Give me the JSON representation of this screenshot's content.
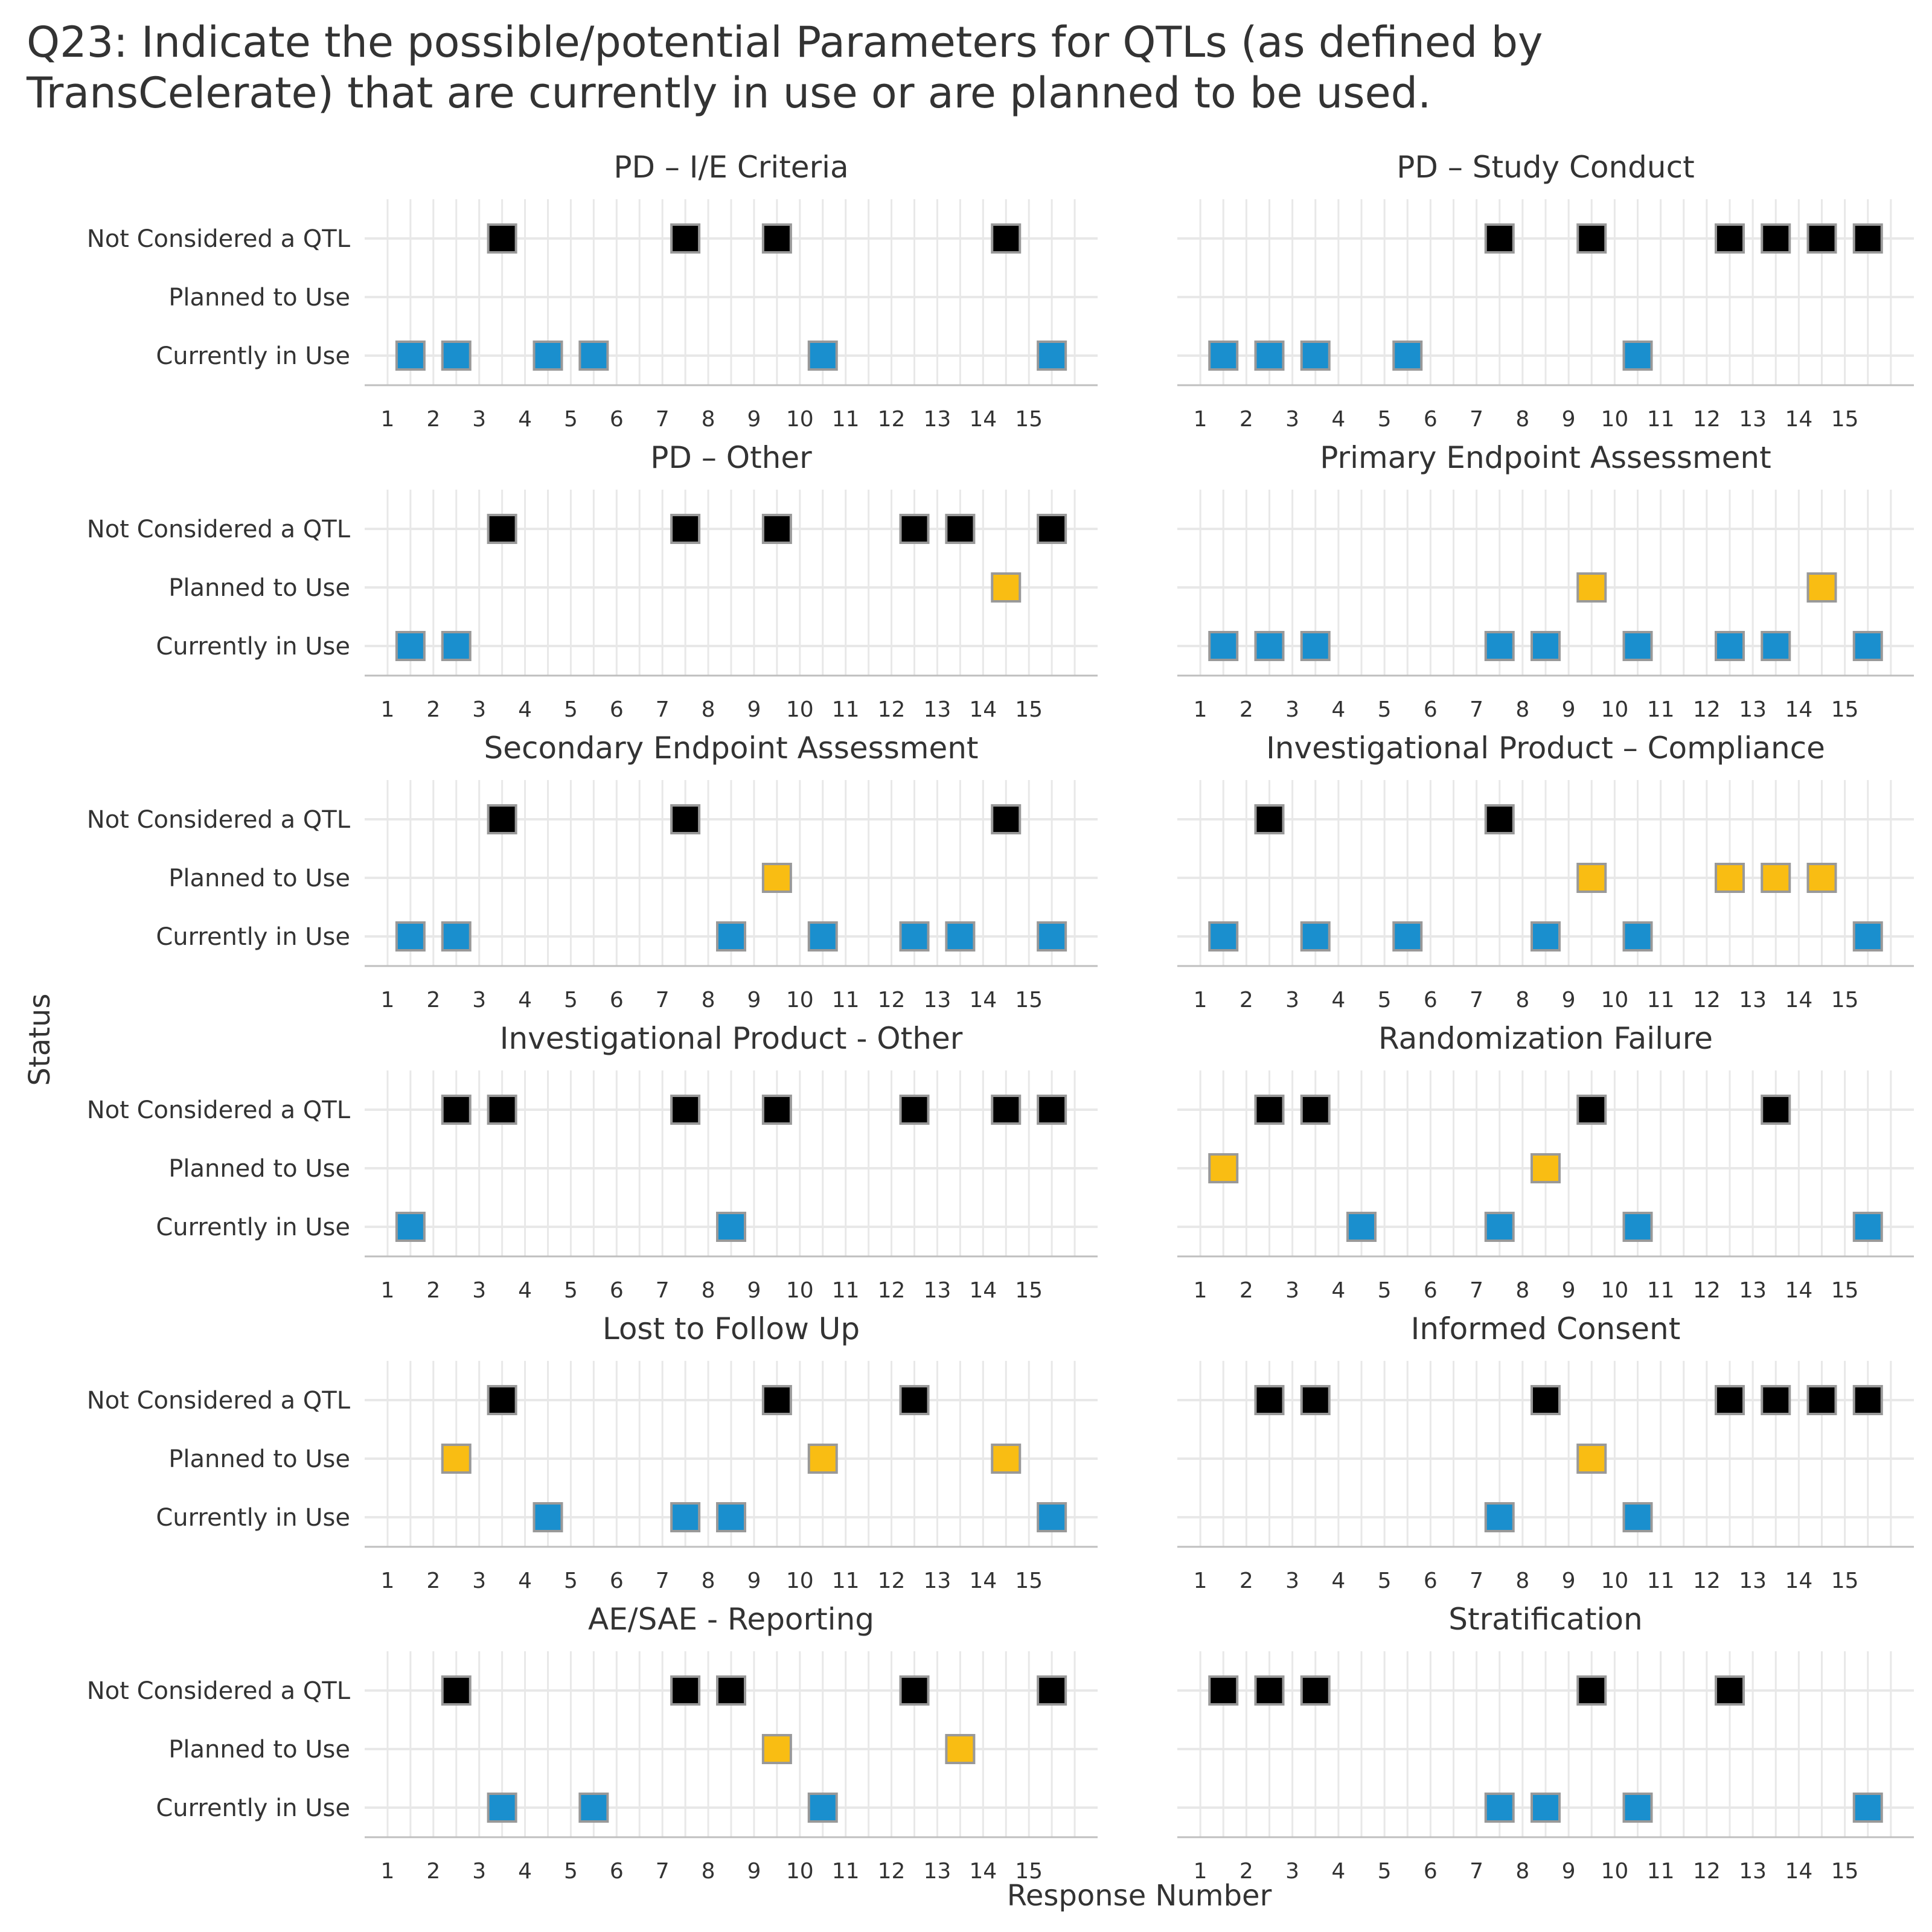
{
  "title_lines": [
    "Q23: Indicate the possible/potential Parameters for QTLs (as defined by",
    "TransCelerate) that are currently in use or are planned to be used."
  ],
  "chart_data": {
    "type": "scatter",
    "xlabel": "Response Number",
    "ylabel": "Status",
    "x_ticks": [
      1,
      2,
      3,
      4,
      5,
      6,
      7,
      8,
      9,
      10,
      11,
      12,
      13,
      14,
      15
    ],
    "xlim": [
      0.5,
      16.5
    ],
    "status_categories": [
      "Not Considered a QTL",
      "Planned to Use",
      "Currently in Use"
    ],
    "colors": {
      "Not Considered a QTL": "#000000",
      "Planned to Use": "#F9BD13",
      "Currently in Use": "#1A8FCE",
      "marker_border": "#999999",
      "grid": "#E8E8E8",
      "axis": "#BFBFBF"
    },
    "marker": "square",
    "grid": true,
    "facets": [
      {
        "name": "PD – I/E Criteria",
        "points": {
          "Not Considered a QTL": [
            3,
            7,
            9,
            14
          ],
          "Planned to Use": [],
          "Currently in Use": [
            1,
            2,
            4,
            5,
            10,
            15
          ]
        }
      },
      {
        "name": "PD – Study Conduct",
        "points": {
          "Not Considered a QTL": [
            7,
            9,
            12,
            13,
            14,
            15
          ],
          "Planned to Use": [],
          "Currently in Use": [
            1,
            2,
            3,
            5,
            10
          ]
        }
      },
      {
        "name": "PD – Other",
        "points": {
          "Not Considered a QTL": [
            3,
            7,
            9,
            12,
            13,
            15
          ],
          "Planned to Use": [
            14
          ],
          "Currently in Use": [
            1,
            2
          ]
        }
      },
      {
        "name": "Primary Endpoint Assessment",
        "points": {
          "Not Considered a QTL": [],
          "Planned to Use": [
            9,
            14
          ],
          "Currently in Use": [
            1,
            2,
            3,
            7,
            8,
            10,
            12,
            13,
            15
          ]
        }
      },
      {
        "name": "Secondary Endpoint Assessment",
        "points": {
          "Not Considered a QTL": [
            3,
            7,
            14
          ],
          "Planned to Use": [
            9
          ],
          "Currently in Use": [
            1,
            2,
            8,
            10,
            12,
            13,
            15
          ]
        }
      },
      {
        "name": "Investigational Product – Compliance",
        "points": {
          "Not Considered a QTL": [
            2,
            7
          ],
          "Planned to Use": [
            9,
            12,
            13,
            14
          ],
          "Currently in Use": [
            1,
            3,
            5,
            8,
            10,
            15
          ]
        }
      },
      {
        "name": "Investigational Product - Other",
        "points": {
          "Not Considered a QTL": [
            2,
            3,
            7,
            9,
            12,
            14,
            15
          ],
          "Planned to Use": [],
          "Currently in Use": [
            1,
            8
          ]
        }
      },
      {
        "name": "Randomization Failure",
        "points": {
          "Not Considered a QTL": [
            2,
            3,
            9,
            13
          ],
          "Planned to Use": [
            1,
            8
          ],
          "Currently in Use": [
            4,
            7,
            10,
            15
          ]
        }
      },
      {
        "name": "Lost to Follow Up",
        "points": {
          "Not Considered a QTL": [
            3,
            9,
            12
          ],
          "Planned to Use": [
            2,
            10,
            14
          ],
          "Currently in Use": [
            4,
            7,
            8,
            15
          ]
        }
      },
      {
        "name": "Informed Consent",
        "points": {
          "Not Considered a QTL": [
            2,
            3,
            8,
            12,
            13,
            14,
            15
          ],
          "Planned to Use": [
            9
          ],
          "Currently in Use": [
            7,
            10
          ]
        }
      },
      {
        "name": "AE/SAE - Reporting",
        "points": {
          "Not Considered a QTL": [
            2,
            7,
            8,
            12,
            15
          ],
          "Planned to Use": [
            9,
            13
          ],
          "Currently in Use": [
            3,
            5,
            10
          ]
        }
      },
      {
        "name": "Stratification",
        "points": {
          "Not Considered a QTL": [
            1,
            2,
            3,
            9,
            12
          ],
          "Planned to Use": [],
          "Currently in Use": [
            7,
            8,
            10,
            15
          ]
        }
      }
    ]
  }
}
